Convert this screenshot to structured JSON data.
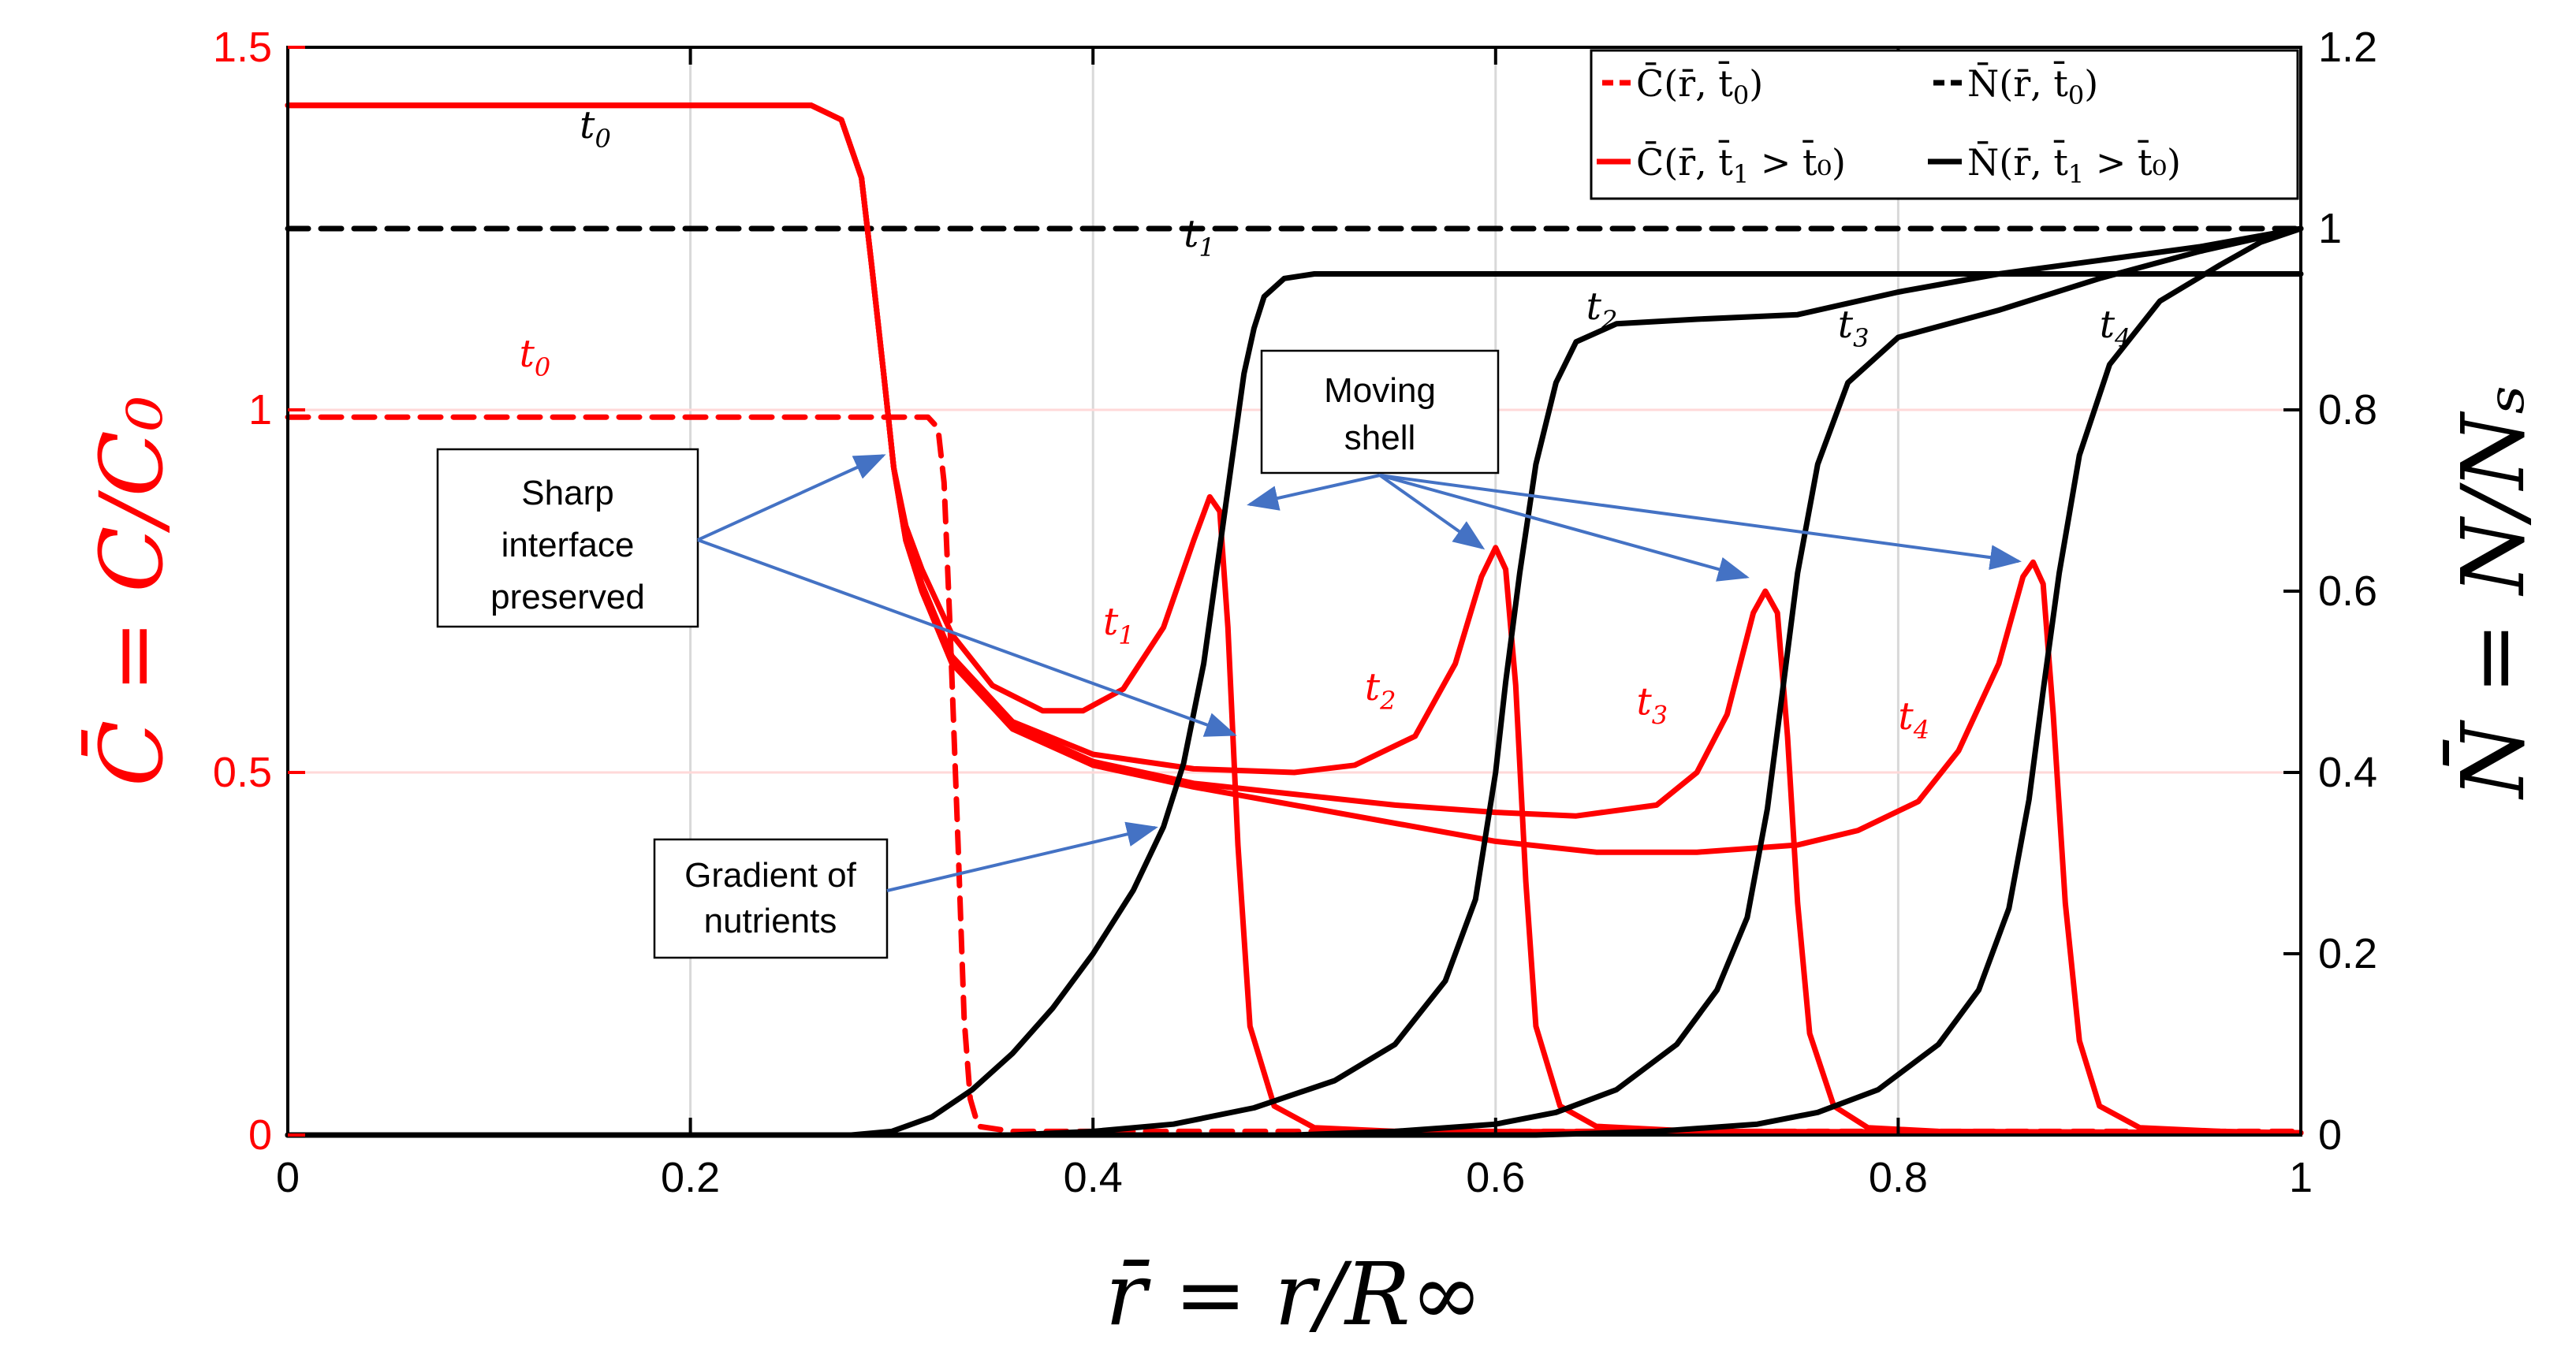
{
  "chart_data": {
    "type": "line",
    "xlabel": "r̄ = r/R∞",
    "ylabel_left": "C̄ = C/C₀",
    "ylabel_right": "N̄ = N/Nₛ",
    "xlim": [
      0,
      1
    ],
    "ylim_left": [
      0,
      1.5
    ],
    "ylim_right": [
      0,
      1.2
    ],
    "x_ticks": [
      "0",
      "0.2",
      "0.4",
      "0.6",
      "0.8",
      "1"
    ],
    "y_left_ticks": [
      "0",
      "0.5",
      "1",
      "1.5"
    ],
    "y_right_ticks": [
      "0",
      "0.2",
      "0.4",
      "0.6",
      "0.8",
      "1",
      "1.2"
    ],
    "grid": true,
    "legend_position": "top-right",
    "colors": {
      "C": "#ff0000",
      "N": "#000000",
      "arrow": "#4472c4"
    },
    "legend": [
      {
        "base": "C̄(r̄, t̄",
        "sub": "0",
        "tail": ")",
        "style": "dashed",
        "color": "#ff0000"
      },
      {
        "base": "N̄(r̄, t̄",
        "sub": "0",
        "tail": ")",
        "style": "dashed",
        "color": "#000000"
      },
      {
        "base": "C̄(r̄, t̄",
        "sub": "1",
        "tail": " > t̄₀)",
        "style": "solid",
        "color": "#ff0000"
      },
      {
        "base": "N̄(r̄, t̄",
        "sub": "1",
        "tail": " > t̄₀)",
        "style": "solid",
        "color": "#000000"
      }
    ],
    "curve_labels": [
      {
        "base": "t",
        "sub": "0",
        "color": "#000000",
        "x": 0.145,
        "y_right": 1.1
      },
      {
        "base": "t",
        "sub": "0",
        "color": "#ff0000",
        "x": 0.115,
        "y_left": 1.06
      },
      {
        "base": "t",
        "sub": "1",
        "color": "#000000",
        "x": 0.445,
        "y_right": 0.98
      },
      {
        "base": "t",
        "sub": "2",
        "color": "#000000",
        "x": 0.645,
        "y_right": 0.9
      },
      {
        "base": "t",
        "sub": "3",
        "color": "#000000",
        "x": 0.77,
        "y_right": 0.88
      },
      {
        "base": "t",
        "sub": "4",
        "color": "#000000",
        "x": 0.9,
        "y_right": 0.88
      },
      {
        "base": "t",
        "sub": "1",
        "color": "#ff0000",
        "x": 0.405,
        "y_left": 0.69
      },
      {
        "base": "t",
        "sub": "2",
        "color": "#ff0000",
        "x": 0.535,
        "y_left": 0.6
      },
      {
        "base": "t",
        "sub": "3",
        "color": "#ff0000",
        "x": 0.67,
        "y_left": 0.58
      },
      {
        "base": "t",
        "sub": "4",
        "color": "#ff0000",
        "x": 0.8,
        "y_left": 0.56
      }
    ],
    "annotations": [
      {
        "id": "sharp",
        "lines": [
          "Sharp",
          "interface",
          "preserved"
        ]
      },
      {
        "id": "moving",
        "lines": [
          "Moving",
          "shell"
        ]
      },
      {
        "id": "gradient",
        "lines": [
          "Gradient of",
          "nutrients"
        ]
      }
    ],
    "series": [
      {
        "axis": "left",
        "style": "dashed",
        "color": "#ff0000",
        "points": [
          [
            0,
            0.99
          ],
          [
            0.3,
            0.99
          ],
          [
            0.318,
            0.99
          ],
          [
            0.323,
            0.975
          ],
          [
            0.326,
            0.9
          ],
          [
            0.329,
            0.7
          ],
          [
            0.333,
            0.4
          ],
          [
            0.336,
            0.16
          ],
          [
            0.339,
            0.05
          ],
          [
            0.343,
            0.012
          ],
          [
            0.36,
            0.005
          ],
          [
            1.0,
            0.005
          ]
        ]
      },
      {
        "axis": "right",
        "style": "dashed",
        "color": "#000000",
        "points": [
          [
            0,
            1.0
          ],
          [
            1,
            1.0
          ]
        ]
      },
      {
        "axis": "left",
        "style": "solid",
        "color": "#ff0000",
        "points": [
          [
            0,
            1.42
          ],
          [
            0.26,
            1.42
          ],
          [
            0.275,
            1.4
          ],
          [
            0.285,
            1.32
          ],
          [
            0.29,
            1.2
          ],
          [
            0.296,
            1.05
          ],
          [
            0.301,
            0.92
          ],
          [
            0.307,
            0.84
          ],
          [
            0.315,
            0.78
          ],
          [
            0.33,
            0.69
          ],
          [
            0.35,
            0.62
          ],
          [
            0.375,
            0.585
          ],
          [
            0.395,
            0.585
          ],
          [
            0.415,
            0.615
          ],
          [
            0.435,
            0.7
          ],
          [
            0.45,
            0.82
          ],
          [
            0.458,
            0.88
          ],
          [
            0.463,
            0.86
          ],
          [
            0.467,
            0.7
          ],
          [
            0.472,
            0.4
          ],
          [
            0.478,
            0.15
          ],
          [
            0.49,
            0.04
          ],
          [
            0.51,
            0.01
          ],
          [
            0.55,
            0.005
          ],
          [
            1.0,
            0.003
          ]
        ]
      },
      {
        "axis": "left",
        "style": "solid",
        "color": "#ff0000",
        "points": [
          [
            0,
            1.42
          ],
          [
            0.26,
            1.42
          ],
          [
            0.275,
            1.4
          ],
          [
            0.285,
            1.32
          ],
          [
            0.29,
            1.2
          ],
          [
            0.296,
            1.05
          ],
          [
            0.301,
            0.92
          ],
          [
            0.307,
            0.83
          ],
          [
            0.315,
            0.76
          ],
          [
            0.33,
            0.66
          ],
          [
            0.36,
            0.57
          ],
          [
            0.4,
            0.525
          ],
          [
            0.45,
            0.505
          ],
          [
            0.5,
            0.5
          ],
          [
            0.53,
            0.51
          ],
          [
            0.56,
            0.55
          ],
          [
            0.58,
            0.65
          ],
          [
            0.593,
            0.77
          ],
          [
            0.6,
            0.81
          ],
          [
            0.605,
            0.78
          ],
          [
            0.61,
            0.62
          ],
          [
            0.615,
            0.35
          ],
          [
            0.62,
            0.15
          ],
          [
            0.632,
            0.04
          ],
          [
            0.65,
            0.012
          ],
          [
            0.7,
            0.005
          ],
          [
            1.0,
            0.003
          ]
        ]
      },
      {
        "axis": "left",
        "style": "solid",
        "color": "#ff0000",
        "points": [
          [
            0,
            1.42
          ],
          [
            0.26,
            1.42
          ],
          [
            0.275,
            1.4
          ],
          [
            0.285,
            1.32
          ],
          [
            0.29,
            1.2
          ],
          [
            0.296,
            1.05
          ],
          [
            0.301,
            0.92
          ],
          [
            0.307,
            0.82
          ],
          [
            0.315,
            0.75
          ],
          [
            0.33,
            0.65
          ],
          [
            0.36,
            0.565
          ],
          [
            0.4,
            0.515
          ],
          [
            0.45,
            0.485
          ],
          [
            0.5,
            0.47
          ],
          [
            0.55,
            0.455
          ],
          [
            0.6,
            0.445
          ],
          [
            0.64,
            0.44
          ],
          [
            0.68,
            0.455
          ],
          [
            0.7,
            0.5
          ],
          [
            0.715,
            0.58
          ],
          [
            0.728,
            0.72
          ],
          [
            0.734,
            0.75
          ],
          [
            0.74,
            0.72
          ],
          [
            0.745,
            0.55
          ],
          [
            0.75,
            0.32
          ],
          [
            0.756,
            0.14
          ],
          [
            0.768,
            0.04
          ],
          [
            0.785,
            0.01
          ],
          [
            0.82,
            0.005
          ],
          [
            1.0,
            0.003
          ]
        ]
      },
      {
        "axis": "left",
        "style": "solid",
        "color": "#ff0000",
        "points": [
          [
            0,
            1.42
          ],
          [
            0.26,
            1.42
          ],
          [
            0.275,
            1.4
          ],
          [
            0.285,
            1.32
          ],
          [
            0.29,
            1.2
          ],
          [
            0.296,
            1.05
          ],
          [
            0.301,
            0.92
          ],
          [
            0.307,
            0.82
          ],
          [
            0.315,
            0.75
          ],
          [
            0.33,
            0.65
          ],
          [
            0.36,
            0.56
          ],
          [
            0.4,
            0.51
          ],
          [
            0.45,
            0.48
          ],
          [
            0.5,
            0.455
          ],
          [
            0.55,
            0.43
          ],
          [
            0.6,
            0.405
          ],
          [
            0.65,
            0.39
          ],
          [
            0.7,
            0.39
          ],
          [
            0.75,
            0.4
          ],
          [
            0.78,
            0.42
          ],
          [
            0.81,
            0.46
          ],
          [
            0.83,
            0.53
          ],
          [
            0.85,
            0.65
          ],
          [
            0.862,
            0.77
          ],
          [
            0.867,
            0.79
          ],
          [
            0.872,
            0.76
          ],
          [
            0.877,
            0.58
          ],
          [
            0.883,
            0.32
          ],
          [
            0.89,
            0.13
          ],
          [
            0.9,
            0.04
          ],
          [
            0.92,
            0.01
          ],
          [
            0.96,
            0.005
          ],
          [
            1.0,
            0.003
          ]
        ]
      },
      {
        "axis": "right",
        "style": "solid",
        "color": "#000000",
        "points": [
          [
            0,
            0
          ],
          [
            0.28,
            0
          ],
          [
            0.3,
            0.004
          ],
          [
            0.32,
            0.02
          ],
          [
            0.34,
            0.05
          ],
          [
            0.36,
            0.09
          ],
          [
            0.38,
            0.14
          ],
          [
            0.4,
            0.2
          ],
          [
            0.42,
            0.27
          ],
          [
            0.435,
            0.34
          ],
          [
            0.445,
            0.41
          ],
          [
            0.455,
            0.52
          ],
          [
            0.46,
            0.6
          ],
          [
            0.465,
            0.68
          ],
          [
            0.47,
            0.76
          ],
          [
            0.475,
            0.84
          ],
          [
            0.48,
            0.89
          ],
          [
            0.485,
            0.925
          ],
          [
            0.495,
            0.945
          ],
          [
            0.51,
            0.95
          ],
          [
            1.0,
            0.95
          ]
        ]
      },
      {
        "axis": "right",
        "style": "solid",
        "color": "#000000",
        "points": [
          [
            0,
            0
          ],
          [
            0.36,
            0
          ],
          [
            0.4,
            0.004
          ],
          [
            0.44,
            0.012
          ],
          [
            0.48,
            0.03
          ],
          [
            0.52,
            0.06
          ],
          [
            0.55,
            0.1
          ],
          [
            0.575,
            0.17
          ],
          [
            0.59,
            0.26
          ],
          [
            0.6,
            0.4
          ],
          [
            0.605,
            0.5
          ],
          [
            0.612,
            0.62
          ],
          [
            0.62,
            0.74
          ],
          [
            0.63,
            0.83
          ],
          [
            0.64,
            0.875
          ],
          [
            0.66,
            0.895
          ],
          [
            0.7,
            0.9
          ],
          [
            0.75,
            0.905
          ],
          [
            0.8,
            0.93
          ],
          [
            0.85,
            0.95
          ],
          [
            0.9,
            0.965
          ],
          [
            0.95,
            0.98
          ],
          [
            1.0,
            1.0
          ]
        ]
      },
      {
        "axis": "right",
        "style": "solid",
        "color": "#000000",
        "points": [
          [
            0,
            0
          ],
          [
            0.5,
            0
          ],
          [
            0.55,
            0.004
          ],
          [
            0.6,
            0.012
          ],
          [
            0.63,
            0.025
          ],
          [
            0.66,
            0.05
          ],
          [
            0.69,
            0.1
          ],
          [
            0.71,
            0.16
          ],
          [
            0.725,
            0.24
          ],
          [
            0.735,
            0.36
          ],
          [
            0.742,
            0.48
          ],
          [
            0.75,
            0.62
          ],
          [
            0.76,
            0.74
          ],
          [
            0.775,
            0.83
          ],
          [
            0.8,
            0.88
          ],
          [
            0.85,
            0.91
          ],
          [
            0.9,
            0.945
          ],
          [
            0.95,
            0.975
          ],
          [
            1.0,
            1.0
          ]
        ]
      },
      {
        "axis": "right",
        "style": "solid",
        "color": "#000000",
        "points": [
          [
            0,
            0
          ],
          [
            0.62,
            0
          ],
          [
            0.68,
            0.004
          ],
          [
            0.73,
            0.012
          ],
          [
            0.76,
            0.025
          ],
          [
            0.79,
            0.05
          ],
          [
            0.82,
            0.1
          ],
          [
            0.84,
            0.16
          ],
          [
            0.855,
            0.25
          ],
          [
            0.865,
            0.37
          ],
          [
            0.872,
            0.49
          ],
          [
            0.88,
            0.62
          ],
          [
            0.89,
            0.75
          ],
          [
            0.905,
            0.85
          ],
          [
            0.93,
            0.92
          ],
          [
            0.96,
            0.96
          ],
          [
            0.98,
            0.985
          ],
          [
            1.0,
            1.0
          ]
        ]
      }
    ]
  }
}
